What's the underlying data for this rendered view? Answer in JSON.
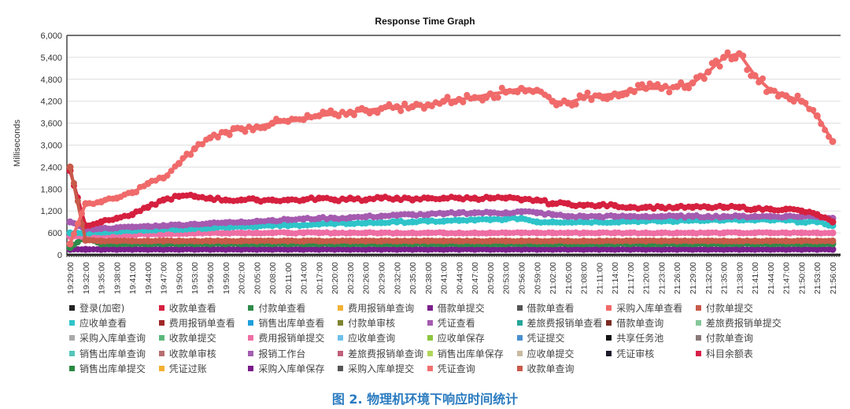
{
  "chart_data": {
    "type": "line",
    "title": "Response Time Graph",
    "ylabel": "Milliseconds",
    "xlabel": "",
    "ylim": [
      0,
      6000
    ],
    "yticks": [
      "0",
      "600",
      "1,200",
      "1,800",
      "2,400",
      "3,000",
      "3,600",
      "4,200",
      "4,800",
      "5,400",
      "6,000"
    ],
    "grid": true,
    "legend_position": "bottom",
    "categories": [
      "19:29:00",
      "19:32:00",
      "19:35:00",
      "19:38:00",
      "19:41:00",
      "19:44:00",
      "19:47:00",
      "19:50:00",
      "19:53:00",
      "19:56:00",
      "19:59:00",
      "20:02:00",
      "20:05:00",
      "20:08:00",
      "20:11:00",
      "20:14:00",
      "20:17:00",
      "20:20:00",
      "20:23:00",
      "20:26:00",
      "20:29:00",
      "20:32:00",
      "20:35:00",
      "20:38:00",
      "20:41:00",
      "20:44:00",
      "20:47:00",
      "20:50:00",
      "20:53:00",
      "20:56:00",
      "20:59:00",
      "21:02:00",
      "21:05:00",
      "21:08:00",
      "21:11:00",
      "21:14:00",
      "21:17:00",
      "21:20:00",
      "21:23:00",
      "21:26:00",
      "21:29:00",
      "21:32:00",
      "21:35:00",
      "21:38:00",
      "21:41:00",
      "21:44:00",
      "21:47:00",
      "21:50:00",
      "21:53:00",
      "21:56:00"
    ],
    "series": [
      {
        "name": "登录(加密)",
        "color": "#222222",
        "values": null
      },
      {
        "name": "收款单查看",
        "color": "#d6203f",
        "values": [
          2300,
          800,
          900,
          1000,
          1100,
          1300,
          1500,
          1600,
          1600,
          1550,
          1500,
          1500,
          1500,
          1500,
          1500,
          1500,
          1550,
          1500,
          1550,
          1500,
          1550,
          1550,
          1500,
          1550,
          1550,
          1550,
          1550,
          1550,
          1550,
          1500,
          1500,
          1400,
          1400,
          1350,
          1350,
          1350,
          1300,
          1300,
          1300,
          1300,
          1300,
          1300,
          1300,
          1300,
          1250,
          1250,
          1250,
          1200,
          1100,
          900
        ]
      },
      {
        "name": "付款单查看",
        "color": "#2e8b4a",
        "values": [
          200,
          500,
          300,
          300,
          300,
          300,
          300,
          300,
          300,
          300,
          300,
          300,
          300,
          300,
          300,
          300,
          300,
          300,
          300,
          300,
          300,
          300,
          300,
          300,
          300,
          300,
          300,
          300,
          300,
          300,
          300,
          300,
          300,
          300,
          300,
          300,
          300,
          300,
          300,
          300,
          300,
          300,
          300,
          300,
          300,
          300,
          300,
          300,
          300,
          300
        ]
      },
      {
        "name": "费用报销单查询",
        "color": "#f2b134",
        "values": null
      },
      {
        "name": "借款单提交",
        "color": "#7b1f8c",
        "values": [
          150,
          150,
          150,
          150,
          150,
          150,
          150,
          150,
          150,
          150,
          150,
          150,
          150,
          150,
          150,
          150,
          150,
          150,
          150,
          150,
          150,
          150,
          150,
          150,
          150,
          150,
          150,
          150,
          150,
          150,
          150,
          150,
          150,
          150,
          150,
          150,
          150,
          150,
          150,
          150,
          150,
          150,
          150,
          150,
          150,
          150,
          150,
          150,
          150,
          150
        ]
      },
      {
        "name": "借款单查看",
        "color": "#555555",
        "values": null
      },
      {
        "name": "采购入库单查看",
        "color": "#f06a6a",
        "values": [
          300,
          1400,
          1450,
          1550,
          1700,
          1950,
          2100,
          2500,
          2900,
          3200,
          3350,
          3450,
          3500,
          3600,
          3650,
          3700,
          3800,
          3850,
          3900,
          3950,
          4000,
          4050,
          4050,
          4100,
          4200,
          4250,
          4300,
          4400,
          4450,
          4550,
          4500,
          4200,
          4150,
          4300,
          4350,
          4400,
          4500,
          4550,
          4550,
          4600,
          4700,
          5000,
          5400,
          5500,
          4900,
          4500,
          4350,
          4200,
          3800,
          3100
        ]
      },
      {
        "name": "付款单提交",
        "color": "#c85a4a",
        "values": [
          2400,
          400,
          380,
          380,
          380,
          380,
          380,
          380,
          380,
          380,
          380,
          380,
          380,
          380,
          380,
          380,
          380,
          380,
          380,
          380,
          380,
          380,
          380,
          380,
          380,
          380,
          380,
          380,
          380,
          380,
          380,
          380,
          380,
          380,
          380,
          380,
          380,
          380,
          380,
          380,
          380,
          380,
          380,
          380,
          380,
          380,
          380,
          380,
          380,
          380
        ]
      },
      {
        "name": "应收单查看",
        "color": "#2ec4c9",
        "values": [
          600,
          600,
          620,
          640,
          660,
          680,
          700,
          700,
          720,
          740,
          760,
          780,
          780,
          800,
          800,
          820,
          840,
          850,
          860,
          870,
          880,
          900,
          900,
          920,
          920,
          940,
          950,
          960,
          980,
          1000,
          900,
          900,
          900,
          900,
          900,
          900,
          920,
          920,
          920,
          920,
          950,
          950,
          950,
          950,
          950,
          950,
          950,
          900,
          900,
          800
        ]
      },
      {
        "name": "费用报销单查看",
        "color": "#a02828",
        "values": null
      },
      {
        "name": "销售出库单查看",
        "color": "#1fa0dc",
        "values": null
      },
      {
        "name": "付款单审核",
        "color": "#7e8430",
        "values": null
      },
      {
        "name": "凭证查看",
        "color": "#a55bb0",
        "values": [
          900,
          700,
          720,
          740,
          760,
          780,
          800,
          820,
          840,
          860,
          880,
          900,
          920,
          940,
          960,
          980,
          1000,
          1000,
          1020,
          1040,
          1060,
          1080,
          1100,
          1100,
          1120,
          1150,
          1150,
          1150,
          1150,
          1180,
          1150,
          1100,
          1050,
          1050,
          1050,
          1050,
          1050,
          1050,
          1050,
          1050,
          1050,
          1050,
          1050,
          1050,
          1050,
          1050,
          1050,
          1050,
          1050,
          1000
        ]
      },
      {
        "name": "差旅费报销单查看",
        "color": "#26a69a",
        "values": null
      },
      {
        "name": "借款单查询",
        "color": "#7a2b22",
        "values": null
      },
      {
        "name": "差旅费报销单提交",
        "color": "#86c79a",
        "values": null
      },
      {
        "name": "采购入库单查询",
        "color": "#aaaaaa",
        "values": null
      },
      {
        "name": "收款单提交",
        "color": "#5cb87a",
        "values": null
      },
      {
        "name": "费用报销单提交",
        "color": "#ee6ea4",
        "values": [
          500,
          500,
          520,
          540,
          550,
          560,
          570,
          580,
          590,
          600,
          600,
          600,
          600,
          600,
          600,
          600,
          600,
          600,
          600,
          600,
          600,
          600,
          600,
          600,
          600,
          600,
          600,
          600,
          600,
          600,
          600,
          600,
          600,
          600,
          600,
          600,
          600,
          600,
          600,
          600,
          600,
          600,
          600,
          600,
          600,
          600,
          600,
          600,
          600,
          600
        ]
      },
      {
        "name": "应收单查询",
        "color": "#6fc0ea",
        "values": null
      },
      {
        "name": "应收单保存",
        "color": "#8cc63f",
        "values": null
      },
      {
        "name": "凭证提交",
        "color": "#4a8fd0",
        "values": null
      },
      {
        "name": "共享任务池",
        "color": "#111111",
        "values": null
      },
      {
        "name": "付款单查询",
        "color": "#8a7a7a",
        "values": null
      },
      {
        "name": "销售出库单查询",
        "color": "#55c6bc",
        "values": null
      },
      {
        "name": "收款单审核",
        "color": "#b86e70",
        "values": null
      },
      {
        "name": "报销工作台",
        "color": "#a45fb0",
        "values": null
      },
      {
        "name": "差旅费报销单查询",
        "color": "#c0607a",
        "values": null
      },
      {
        "name": "销售出库单保存",
        "color": "#b2d65a",
        "values": null
      },
      {
        "name": "应收单提交",
        "color": "#c8bca0",
        "values": null
      },
      {
        "name": "凭证审核",
        "color": "#1a1a2a",
        "values": null
      },
      {
        "name": "科目余额表",
        "color": "#d81e48",
        "values": null
      },
      {
        "name": "销售出库单提交",
        "color": "#2a8a40",
        "values": null
      },
      {
        "name": "凭证过账",
        "color": "#f4b030",
        "values": null
      },
      {
        "name": "采购入库单保存",
        "color": "#7a1a8a",
        "values": null
      },
      {
        "name": "采购入库单提交",
        "color": "#555555",
        "values": null
      },
      {
        "name": "凭证查询",
        "color": "#f07070",
        "values": null
      },
      {
        "name": "收款单查询",
        "color": "#c85a4a",
        "values": null
      }
    ]
  },
  "caption": "图 2. 物理机环境下响应时间统计"
}
